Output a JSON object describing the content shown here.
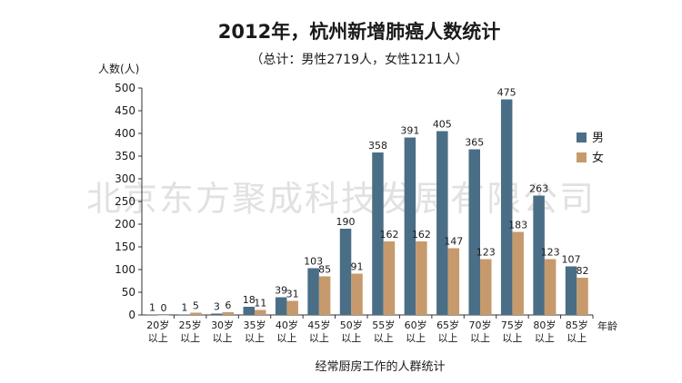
{
  "chart_data": {
    "type": "bar",
    "title": "2012年，杭州新增肺癌人数统计",
    "subtitle": "（总计：男性2719人，女性1211人）",
    "ylabel": "人数(人)",
    "xlabel": "经常厨房工作的人群统计",
    "x_unit": "年龄",
    "ylim": [
      0,
      500
    ],
    "yticks": [
      0,
      50,
      100,
      150,
      200,
      250,
      300,
      350,
      400,
      450,
      500
    ],
    "categories": [
      [
        "20岁",
        "以上"
      ],
      [
        "25岁",
        "以上"
      ],
      [
        "30岁",
        "以上"
      ],
      [
        "35岁",
        "以上"
      ],
      [
        "40岁",
        "以上"
      ],
      [
        "45岁",
        "以上"
      ],
      [
        "50岁",
        "以上"
      ],
      [
        "55岁",
        "以上"
      ],
      [
        "60岁",
        "以上"
      ],
      [
        "65岁",
        "以上"
      ],
      [
        "70岁",
        "以上"
      ],
      [
        "75岁",
        "以上"
      ],
      [
        "80岁",
        "以上"
      ],
      [
        "85岁",
        "以上"
      ]
    ],
    "series": [
      {
        "name": "男",
        "color": "#4a6e86",
        "values": [
          1,
          1,
          3,
          18,
          39,
          103,
          190,
          358,
          391,
          405,
          365,
          475,
          263,
          107
        ]
      },
      {
        "name": "女",
        "color": "#c69a6d",
        "values": [
          0,
          5,
          6,
          11,
          31,
          85,
          91,
          162,
          162,
          147,
          123,
          183,
          123,
          82
        ]
      }
    ],
    "legend_position": "right",
    "watermark": "北京东方聚成科技发展有限公司"
  }
}
